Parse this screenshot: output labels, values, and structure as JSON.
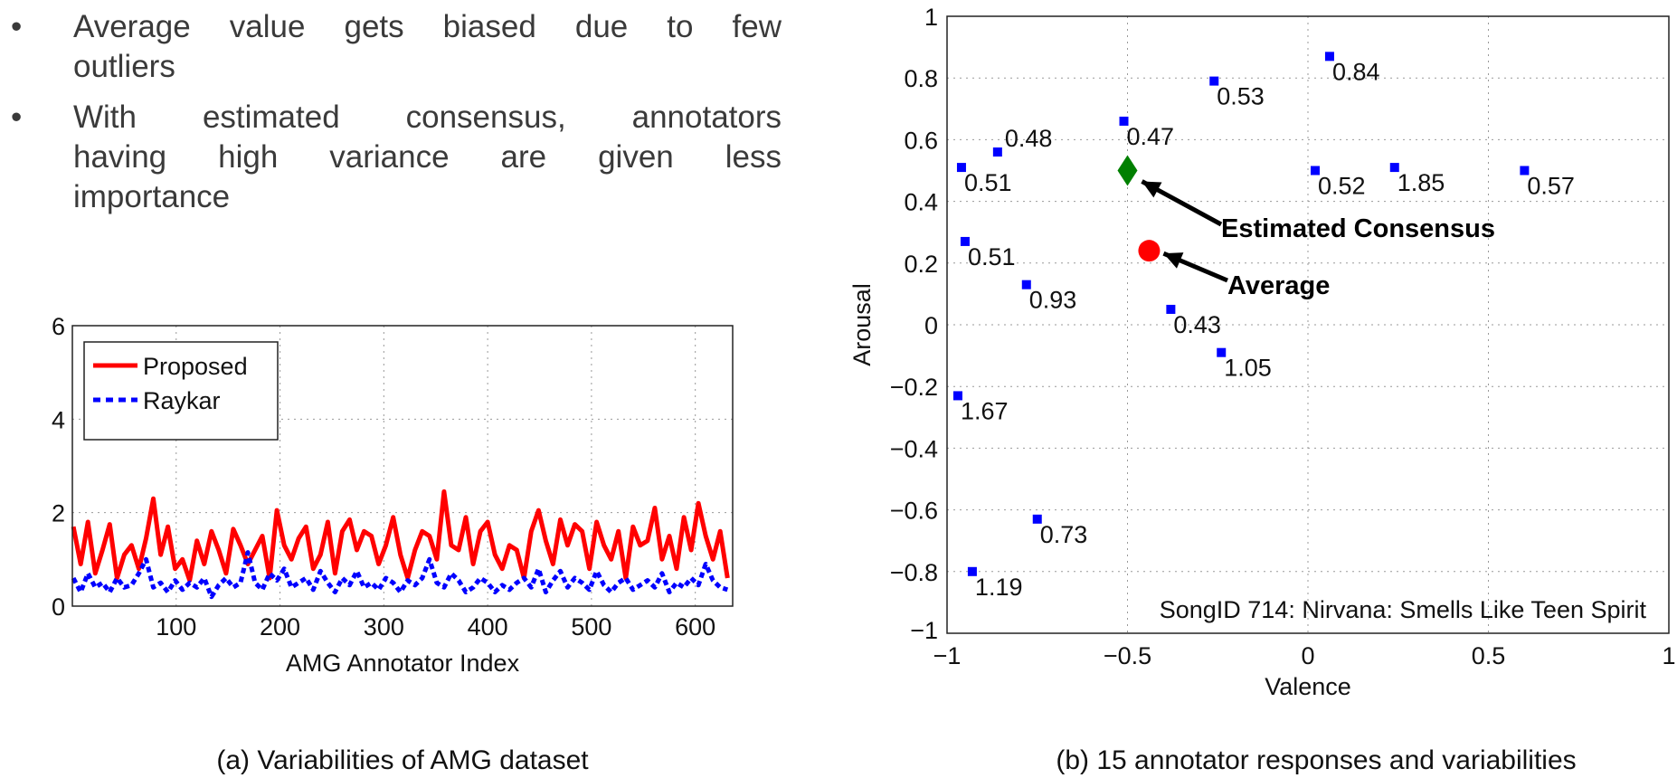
{
  "bullets": [
    {
      "lines": [
        "Average value gets biased due to few",
        "outliers"
      ]
    },
    {
      "lines": [
        "With estimated consensus, annotators",
        "having high variance are given less",
        "importance"
      ]
    }
  ],
  "bullet_symbol": "•",
  "chart_data": [
    {
      "type": "line",
      "caption": "(a) Variabilities of AMG dataset",
      "xlabel": "AMG Annotator Index",
      "ylabel": "",
      "xlim": [
        0,
        636
      ],
      "ylim": [
        0,
        6
      ],
      "xticks": [
        "100",
        "200",
        "300",
        "400",
        "500",
        "600"
      ],
      "yticks": [
        "0",
        "2",
        "4",
        "6"
      ],
      "grid": true,
      "legend_position": "top-left",
      "x_step": 7,
      "x_start": 1,
      "series": [
        {
          "name": "Proposed",
          "color": "#ff0000",
          "style": "solid",
          "values": [
            1.7,
            0.9,
            1.8,
            0.7,
            1.2,
            1.75,
            0.6,
            1.1,
            1.3,
            0.8,
            1.45,
            2.3,
            1.1,
            1.7,
            0.8,
            1.0,
            0.55,
            1.4,
            0.9,
            1.6,
            1.2,
            0.7,
            1.65,
            1.3,
            0.9,
            1.2,
            1.5,
            0.6,
            2.05,
            1.3,
            1.0,
            1.45,
            1.7,
            0.8,
            1.1,
            1.8,
            0.7,
            1.6,
            1.85,
            1.2,
            1.6,
            1.5,
            0.9,
            1.3,
            1.9,
            1.1,
            0.6,
            1.2,
            1.6,
            1.5,
            1.0,
            2.45,
            1.3,
            1.2,
            1.9,
            0.9,
            1.6,
            1.8,
            1.1,
            0.8,
            1.3,
            1.2,
            0.6,
            1.6,
            2.05,
            1.4,
            0.9,
            1.85,
            1.3,
            1.75,
            1.6,
            0.8,
            1.8,
            1.3,
            1.0,
            1.6,
            0.6,
            1.7,
            1.3,
            1.4,
            2.1,
            1.0,
            1.5,
            0.8,
            1.9,
            1.2,
            2.2,
            1.5,
            1.0,
            1.6,
            0.6
          ]
        },
        {
          "name": "Raykar",
          "color": "#0000ff",
          "style": "dashed",
          "values": [
            0.6,
            0.3,
            0.7,
            0.4,
            0.5,
            0.3,
            0.6,
            0.4,
            0.45,
            0.7,
            1.0,
            0.4,
            0.5,
            0.3,
            0.55,
            0.35,
            0.5,
            0.4,
            0.6,
            0.2,
            0.45,
            0.6,
            0.4,
            0.5,
            1.15,
            0.5,
            0.35,
            0.7,
            0.55,
            0.8,
            0.4,
            0.5,
            0.6,
            0.35,
            0.75,
            0.5,
            0.3,
            0.6,
            0.45,
            0.75,
            0.4,
            0.5,
            0.35,
            0.6,
            0.5,
            0.3,
            0.55,
            0.45,
            0.6,
            1.0,
            0.5,
            0.4,
            0.7,
            0.55,
            0.3,
            0.4,
            0.6,
            0.5,
            0.3,
            0.45,
            0.35,
            0.5,
            0.6,
            0.4,
            0.8,
            0.3,
            0.55,
            0.75,
            0.4,
            0.6,
            0.5,
            0.35,
            0.75,
            0.45,
            0.3,
            0.5,
            0.6,
            0.35,
            0.45,
            0.55,
            0.4,
            0.7,
            0.3,
            0.5,
            0.4,
            0.6,
            0.45,
            0.9,
            0.55,
            0.4,
            0.35
          ]
        }
      ]
    },
    {
      "type": "scatter",
      "caption": "(b) 15 annotator responses and variabilities",
      "xlabel": "Valence",
      "ylabel": "Arousal",
      "xlim": [
        -1,
        1
      ],
      "ylim": [
        -1,
        1
      ],
      "xticks": [
        "−1",
        "−0.5",
        "0",
        "0.5",
        "1"
      ],
      "yticks": [
        "1",
        "0.8",
        "0.6",
        "0.4",
        "0.2",
        "0",
        "−0.2",
        "−0.4",
        "−0.6",
        "−0.8",
        "−1"
      ],
      "grid": true,
      "annotation_text": "SongID 714: Nirvana: Smells Like Teen Spirit",
      "point_color": "#0000ff",
      "points": [
        {
          "x": -0.96,
          "y": 0.51,
          "label": "0.51"
        },
        {
          "x": -0.86,
          "y": 0.56,
          "label": "0.48"
        },
        {
          "x": -0.51,
          "y": 0.66,
          "label": "0.47"
        },
        {
          "x": -0.26,
          "y": 0.79,
          "label": "0.53"
        },
        {
          "x": 0.06,
          "y": 0.87,
          "label": "0.84"
        },
        {
          "x": 0.02,
          "y": 0.5,
          "label": "0.52"
        },
        {
          "x": 0.24,
          "y": 0.51,
          "label": "1.85"
        },
        {
          "x": 0.6,
          "y": 0.5,
          "label": "0.57"
        },
        {
          "x": -0.95,
          "y": 0.27,
          "label": "0.51"
        },
        {
          "x": -0.78,
          "y": 0.13,
          "label": "0.93"
        },
        {
          "x": -0.38,
          "y": 0.05,
          "label": "0.43"
        },
        {
          "x": -0.24,
          "y": -0.09,
          "label": "1.05"
        },
        {
          "x": -0.97,
          "y": -0.23,
          "label": "1.67"
        },
        {
          "x": -0.75,
          "y": -0.63,
          "label": "0.73"
        },
        {
          "x": -0.93,
          "y": -0.8,
          "label": "1.19"
        }
      ],
      "consensus": {
        "x": -0.5,
        "y": 0.5,
        "label": "Estimated Consensus",
        "color": "#008000"
      },
      "average": {
        "x": -0.44,
        "y": 0.24,
        "label": "Average",
        "color": "#ff0000"
      }
    }
  ]
}
